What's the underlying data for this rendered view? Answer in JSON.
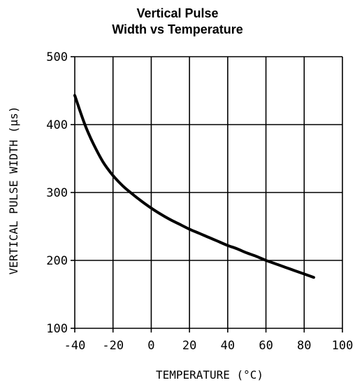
{
  "chart_data": {
    "type": "line",
    "title_lines": [
      "Vertical Pulse",
      "Width vs Temperature"
    ],
    "xlabel": "TEMPERATURE (°C)",
    "ylabel": "VERTICAL PULSE WIDTH (μs)",
    "xlim": [
      -40,
      100
    ],
    "ylim": [
      100,
      500
    ],
    "x_ticks": [
      "-40",
      "-20",
      "0",
      "20",
      "40",
      "60",
      "80",
      "100"
    ],
    "y_ticks": [
      "500",
      "400",
      "300",
      "200",
      "100"
    ],
    "grid": true,
    "series": [
      {
        "color": "#000000",
        "x": [
          -40,
          -37,
          -34,
          -30,
          -25,
          -20,
          -15,
          -10,
          -5,
          0,
          5,
          10,
          15,
          20,
          25,
          30,
          35,
          40,
          45,
          50,
          55,
          60,
          65,
          70,
          75,
          80,
          85
        ],
        "y": [
          443,
          418,
          395,
          370,
          344,
          325,
          310,
          298,
          287,
          277,
          268,
          260,
          253,
          246,
          240,
          234,
          228,
          222,
          217,
          211,
          206,
          200,
          195,
          190,
          185,
          180,
          175
        ]
      }
    ]
  }
}
